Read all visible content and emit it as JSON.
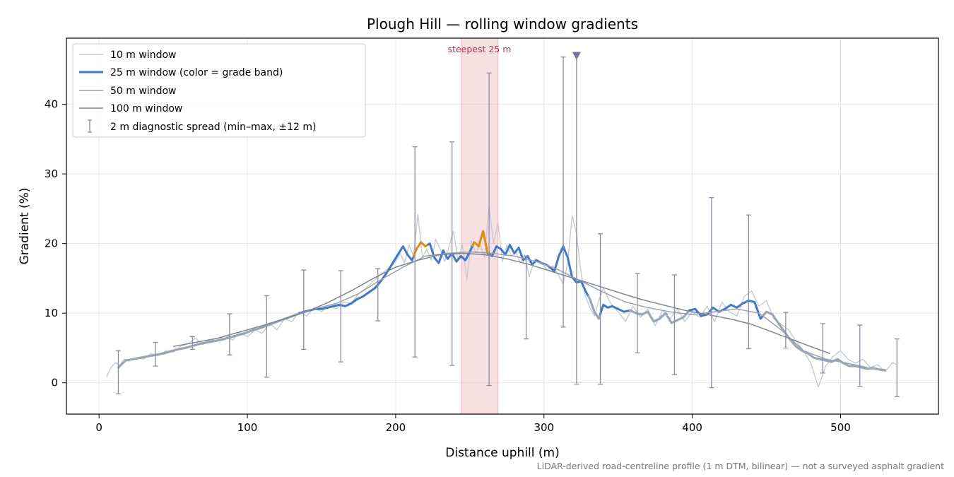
{
  "chart_data": {
    "type": "line",
    "title": "Plough Hill — rolling window gradients",
    "xlabel": "Distance uphill (m)",
    "ylabel": "Gradient (%)",
    "xlim": [
      -22,
      566
    ],
    "ylim": [
      -4.5,
      49.5
    ],
    "x_ticks": [
      0,
      100,
      200,
      300,
      400,
      500
    ],
    "y_ticks": [
      0,
      10,
      20,
      30,
      40
    ],
    "grid": true,
    "legend_position": "top-left",
    "footnote": "LiDAR-derived road-centreline profile (1 m DTM, bilinear) — not a surveyed asphalt gradient",
    "colors": {
      "w10": "#c5cad3",
      "w25_blue": "#3a78d4",
      "w25_gray": "#9aa7b4",
      "w25_orange": "#e08c0c",
      "w50": "#9aa2ae",
      "w100": "#7d8591",
      "errorbar": "#8f88ad",
      "highlight": "#e6a1a8",
      "highlight_text": "#c0304a",
      "marker": "#7d6fa0",
      "grid": "#e6e6e6"
    },
    "legend": [
      {
        "key": "w10",
        "label": "10 m window",
        "style": "line"
      },
      {
        "key": "w25",
        "label": "25 m window (color = grade band)",
        "style": "line"
      },
      {
        "key": "w50",
        "label": "50 m window",
        "style": "line"
      },
      {
        "key": "w100",
        "label": "100 m window",
        "style": "line"
      },
      {
        "key": "err",
        "label": "2 m diagnostic spread (min–max, ±12 m)",
        "style": "errorbar"
      }
    ],
    "highlight_band": {
      "x": [
        244,
        269
      ],
      "label": "steepest 25 m"
    },
    "max_marker": {
      "x": 322,
      "y": 47
    },
    "series": [
      {
        "name": "10 m window",
        "key": "w10",
        "x": [
          5,
          8,
          11,
          14,
          17,
          20,
          25,
          30,
          35,
          40,
          45,
          50,
          55,
          60,
          65,
          70,
          75,
          80,
          85,
          90,
          95,
          100,
          105,
          110,
          115,
          120,
          125,
          130,
          135,
          140,
          145,
          150,
          155,
          160,
          165,
          170,
          175,
          180,
          185,
          190,
          195,
          200,
          203,
          206,
          209,
          212,
          215,
          218,
          221,
          224,
          227,
          230,
          233,
          236,
          239,
          242,
          245,
          248,
          251,
          254,
          257,
          260,
          263,
          266,
          269,
          272,
          275,
          278,
          281,
          284,
          287,
          290,
          294,
          298,
          302,
          306,
          310,
          313,
          316,
          319,
          322,
          325,
          328,
          331,
          334,
          337,
          340,
          345,
          350,
          355,
          360,
          365,
          370,
          375,
          380,
          385,
          390,
          395,
          400,
          405,
          410,
          415,
          420,
          425,
          430,
          435,
          440,
          445,
          450,
          455,
          460,
          465,
          470,
          475,
          480,
          485,
          490,
          495,
          500,
          505,
          510,
          515,
          520,
          525,
          530,
          535,
          538
        ],
        "y": [
          0.8,
          2.2,
          2.9,
          2.5,
          3.4,
          3.1,
          3.6,
          3.4,
          4.2,
          3.9,
          4.6,
          4.4,
          5.2,
          5.6,
          6.4,
          5.5,
          6.2,
          6.0,
          6.8,
          6.1,
          7.3,
          6.6,
          7.6,
          7.1,
          8.6,
          7.6,
          9.2,
          8.8,
          10.2,
          9.6,
          10.8,
          10.2,
          11.2,
          10.6,
          11.6,
          11.4,
          12.8,
          13.6,
          14.6,
          15.6,
          16.4,
          17.4,
          18.6,
          17.2,
          19.8,
          18.2,
          24.2,
          18.0,
          19.2,
          17.6,
          20.6,
          19.2,
          17.4,
          19.6,
          21.8,
          17.6,
          19.8,
          14.8,
          20.4,
          18.6,
          19.8,
          18.0,
          25.4,
          20.0,
          23.0,
          17.4,
          19.8,
          18.2,
          18.8,
          17.2,
          18.4,
          15.2,
          17.8,
          17.4,
          16.2,
          16.8,
          15.4,
          14.2,
          17.2,
          24.0,
          21.4,
          15.8,
          12.4,
          10.8,
          9.6,
          11.8,
          13.6,
          11.4,
          10.2,
          8.8,
          11.0,
          9.4,
          10.6,
          8.2,
          10.4,
          9.2,
          10.6,
          8.8,
          10.2,
          9.4,
          11.0,
          8.8,
          11.6,
          10.2,
          9.6,
          12.4,
          13.2,
          11.0,
          11.8,
          9.2,
          8.4,
          7.6,
          6.0,
          4.6,
          2.8,
          -0.6,
          2.4,
          3.8,
          4.6,
          3.4,
          2.8,
          3.4,
          2.2,
          2.6,
          1.6,
          2.9,
          2.6
        ]
      },
      {
        "name": "25 m window",
        "key": "w25",
        "x": [
          13,
          18,
          23,
          28,
          33,
          38,
          43,
          48,
          53,
          58,
          63,
          68,
          73,
          78,
          83,
          88,
          93,
          98,
          103,
          108,
          113,
          118,
          123,
          128,
          133,
          138,
          142,
          146,
          150,
          154,
          158,
          162,
          166,
          170,
          174,
          178,
          182,
          186,
          190,
          194,
          198,
          202,
          205,
          208,
          211,
          214,
          217,
          220,
          223,
          226,
          229,
          232,
          235,
          238,
          241,
          244,
          247,
          250,
          253,
          256,
          259,
          262,
          265,
          268,
          271,
          274,
          277,
          280,
          283,
          286,
          289,
          292,
          295,
          298,
          301,
          304,
          307,
          310,
          313,
          316,
          319,
          322,
          325,
          328,
          331,
          334,
          337,
          340,
          343,
          346,
          350,
          354,
          358,
          362,
          366,
          370,
          374,
          378,
          382,
          386,
          390,
          394,
          398,
          402,
          406,
          410,
          414,
          418,
          422,
          426,
          430,
          434,
          438,
          442,
          446,
          450,
          454,
          458,
          462,
          466,
          470,
          474,
          478,
          482,
          486,
          490,
          494,
          498,
          502,
          506,
          510,
          514,
          518,
          522,
          526,
          530
        ],
        "y": [
          2.2,
          3.2,
          3.4,
          3.6,
          3.8,
          4.0,
          4.2,
          4.5,
          4.8,
          5.0,
          5.3,
          5.6,
          5.8,
          6.0,
          6.2,
          6.5,
          6.8,
          7.1,
          7.5,
          7.8,
          8.2,
          8.6,
          9.0,
          9.4,
          9.8,
          10.2,
          10.4,
          10.6,
          10.6,
          10.8,
          11.0,
          11.2,
          11.0,
          11.4,
          12.0,
          12.4,
          13.0,
          13.6,
          14.6,
          15.8,
          17.2,
          18.6,
          19.6,
          18.4,
          17.6,
          19.2,
          20.2,
          19.6,
          20.0,
          18.0,
          17.2,
          19.0,
          17.8,
          18.6,
          17.4,
          18.2,
          17.6,
          18.8,
          20.2,
          19.6,
          21.8,
          18.6,
          18.2,
          19.6,
          19.2,
          18.4,
          19.8,
          18.6,
          19.4,
          17.6,
          18.2,
          17.0,
          17.6,
          17.2,
          17.0,
          16.6,
          16.0,
          18.2,
          19.6,
          18.0,
          15.2,
          14.4,
          14.6,
          13.2,
          12.0,
          10.2,
          9.2,
          11.2,
          10.8,
          11.0,
          10.6,
          10.2,
          10.4,
          10.0,
          9.8,
          10.2,
          8.8,
          9.2,
          10.0,
          8.6,
          9.0,
          9.4,
          10.4,
          10.6,
          9.6,
          9.8,
          10.8,
          10.2,
          10.6,
          11.2,
          10.8,
          11.4,
          11.8,
          11.6,
          9.2,
          10.2,
          9.8,
          8.6,
          7.4,
          6.2,
          5.2,
          4.6,
          4.2,
          3.6,
          3.4,
          3.2,
          3.0,
          3.4,
          2.8,
          2.4,
          2.4,
          2.2,
          2.0,
          2.1,
          1.9,
          1.8
        ],
        "segments": [
          {
            "range": [
              13,
              135
            ],
            "band": "w25_gray"
          },
          {
            "range": [
              135,
              212
            ],
            "band": "w25_blue"
          },
          {
            "range": [
              212,
              222
            ],
            "band": "w25_orange"
          },
          {
            "range": [
              222,
              252
            ],
            "band": "w25_blue"
          },
          {
            "range": [
              252,
              262
            ],
            "band": "w25_orange"
          },
          {
            "range": [
              262,
              330
            ],
            "band": "w25_blue"
          },
          {
            "range": [
              330,
              338
            ],
            "band": "w25_gray"
          },
          {
            "range": [
              338,
              358
            ],
            "band": "w25_blue"
          },
          {
            "range": [
              358,
              398
            ],
            "band": "w25_gray"
          },
          {
            "range": [
              398,
              448
            ],
            "band": "w25_blue"
          },
          {
            "range": [
              448,
              530
            ],
            "band": "w25_gray"
          }
        ]
      },
      {
        "name": "50 m window",
        "key": "w50",
        "x": [
          25,
          40,
          55,
          70,
          85,
          100,
          115,
          130,
          145,
          160,
          175,
          190,
          205,
          220,
          235,
          250,
          265,
          280,
          295,
          310,
          325,
          340,
          355,
          370,
          385,
          400,
          415,
          430,
          445,
          460,
          475,
          490,
          505,
          518
        ],
        "y": [
          3.4,
          4.1,
          4.9,
          5.6,
          6.4,
          7.2,
          8.4,
          9.6,
          10.6,
          11.4,
          12.8,
          14.8,
          16.6,
          18.2,
          18.6,
          18.8,
          18.6,
          18.2,
          17.4,
          16.2,
          14.6,
          13.0,
          11.6,
          10.8,
          10.2,
          9.8,
          10.2,
          10.6,
          10.0,
          7.6,
          4.6,
          3.4,
          2.8,
          2.2
        ]
      },
      {
        "name": "100 m window",
        "key": "w100",
        "x": [
          50,
          65,
          80,
          95,
          110,
          125,
          140,
          155,
          170,
          185,
          200,
          215,
          230,
          245,
          260,
          275,
          290,
          305,
          320,
          335,
          350,
          365,
          380,
          395,
          410,
          425,
          440,
          455,
          470,
          485,
          493
        ],
        "y": [
          5.2,
          5.8,
          6.4,
          7.3,
          8.2,
          9.2,
          10.2,
          11.6,
          13.2,
          15.0,
          16.6,
          17.6,
          18.4,
          18.6,
          18.4,
          17.8,
          17.0,
          16.0,
          15.0,
          14.0,
          13.0,
          12.0,
          11.2,
          10.4,
          9.8,
          9.2,
          8.4,
          7.2,
          6.0,
          4.8,
          4.2
        ]
      }
    ],
    "errorbars": [
      {
        "x": 13,
        "ymin": -1.6,
        "ymax": 4.6
      },
      {
        "x": 38,
        "ymin": 2.4,
        "ymax": 5.8
      },
      {
        "x": 63,
        "ymin": 4.8,
        "ymax": 6.6
      },
      {
        "x": 88,
        "ymin": 4.0,
        "ymax": 9.9
      },
      {
        "x": 113,
        "ymin": 0.8,
        "ymax": 12.5
      },
      {
        "x": 138,
        "ymin": 4.8,
        "ymax": 16.2
      },
      {
        "x": 163,
        "ymin": 3.0,
        "ymax": 16.1
      },
      {
        "x": 188,
        "ymin": 8.9,
        "ymax": 16.4
      },
      {
        "x": 213,
        "ymin": 3.7,
        "ymax": 33.9
      },
      {
        "x": 238,
        "ymin": 2.5,
        "ymax": 34.6
      },
      {
        "x": 263,
        "ymin": -0.4,
        "ymax": 44.5
      },
      {
        "x": 288,
        "ymin": 6.3,
        "ymax": 18.2
      },
      {
        "x": 313,
        "ymin": 8.0,
        "ymax": 46.8
      },
      {
        "x": 322,
        "ymin": -0.2,
        "ymax": 47.0
      },
      {
        "x": 338,
        "ymin": -0.2,
        "ymax": 21.4
      },
      {
        "x": 363,
        "ymin": 4.3,
        "ymax": 15.7
      },
      {
        "x": 388,
        "ymin": 1.2,
        "ymax": 15.5
      },
      {
        "x": 413,
        "ymin": -0.7,
        "ymax": 26.6
      },
      {
        "x": 438,
        "ymin": 4.9,
        "ymax": 24.1
      },
      {
        "x": 463,
        "ymin": 5.0,
        "ymax": 10.1
      },
      {
        "x": 488,
        "ymin": 1.4,
        "ymax": 8.5
      },
      {
        "x": 513,
        "ymin": -0.5,
        "ymax": 8.3
      },
      {
        "x": 538,
        "ymin": -2.0,
        "ymax": 6.3
      }
    ]
  }
}
